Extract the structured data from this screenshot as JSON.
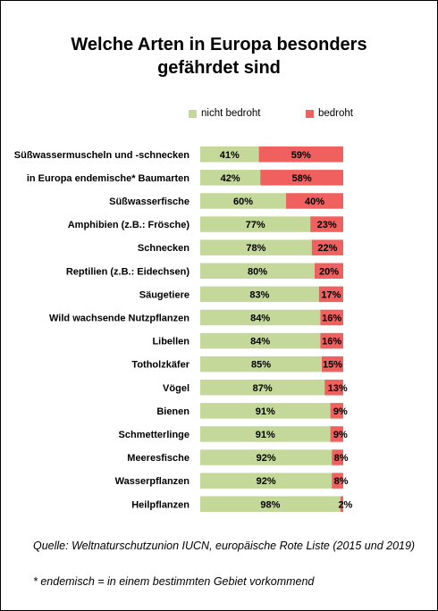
{
  "title_lines": [
    "Welche Arten in Europa besonders",
    "gefährdet sind"
  ],
  "legend": [
    {
      "label": "nicht bedroht",
      "color": "#c4d89a"
    },
    {
      "label": "bedroht",
      "color": "#f0605f"
    }
  ],
  "source": "Quelle: Weltnaturschutzunion IUCN, europäische Rote Liste (2015 und 2019)",
  "footnote": "* endemisch = in einem bestimmten Gebiet vorkommend",
  "chart_data": {
    "type": "bar",
    "orientation": "horizontal",
    "stacked": true,
    "percent_stacked": true,
    "categories": [
      "Süßwassermuscheln und -schnecken",
      "in Europa endemische* Baumarten",
      "Süßwasserfische",
      "Amphibien (z.B.: Frösche)",
      "Schnecken",
      "Reptilien (z.B.: Eidechsen)",
      "Säugetiere",
      "Wild wachsende Nutzpflanzen",
      "Libellen",
      "Totholzkäfer",
      "Vögel",
      "Bienen",
      "Schmetterlinge",
      "Meeresfische",
      "Wasserpflanzen",
      "Heilpflanzen"
    ],
    "series": [
      {
        "name": "nicht bedroht",
        "color": "#c4d89a",
        "values": [
          41,
          42,
          60,
          77,
          78,
          80,
          83,
          84,
          84,
          85,
          87,
          91,
          91,
          92,
          92,
          98
        ],
        "labels": [
          "41%",
          "42%",
          "60%",
          "77%",
          "78%",
          "80%",
          "83%",
          "84%",
          "84%",
          "85%",
          "87%",
          "91%",
          "91%",
          "92%",
          "92%",
          "98%"
        ]
      },
      {
        "name": "bedroht",
        "color": "#f0605f",
        "values": [
          59,
          58,
          40,
          23,
          22,
          20,
          17,
          16,
          16,
          15,
          13,
          9,
          9,
          8,
          8,
          2
        ],
        "labels": [
          "59%",
          "58%",
          "40%",
          "23%",
          "22%",
          "20%",
          "17%",
          "16%",
          "16%",
          "15%",
          "13%",
          "9%",
          "9%",
          "8%",
          "8%",
          "2%"
        ]
      }
    ],
    "xlim": [
      0,
      100
    ],
    "grid": false,
    "legend_position": "top"
  }
}
